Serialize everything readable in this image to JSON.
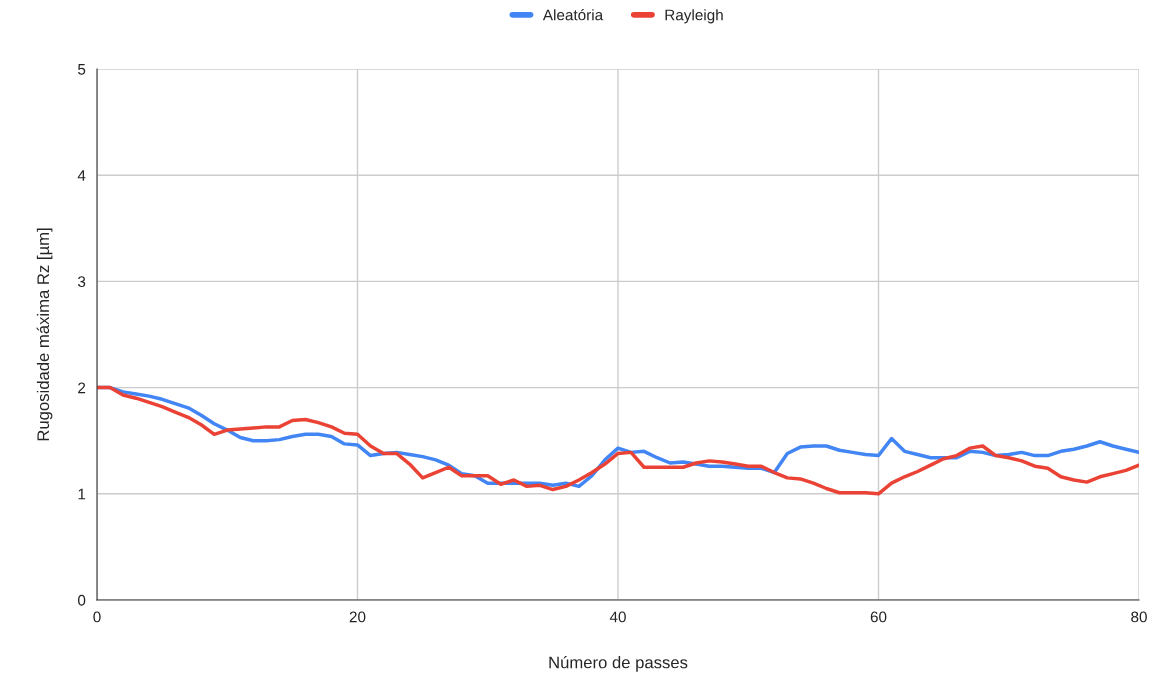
{
  "chart_data": {
    "type": "line",
    "xlabel": "Número de passes",
    "ylabel": "Rugosidade máxima Rz [µm]",
    "x": [
      0,
      1,
      2,
      3,
      4,
      5,
      6,
      7,
      8,
      9,
      10,
      11,
      12,
      13,
      14,
      15,
      16,
      17,
      18,
      19,
      20,
      21,
      22,
      23,
      24,
      25,
      26,
      27,
      28,
      29,
      30,
      31,
      32,
      33,
      34,
      35,
      36,
      37,
      38,
      39,
      40,
      41,
      42,
      43,
      44,
      45,
      46,
      47,
      48,
      49,
      50,
      51,
      52,
      53,
      54,
      55,
      56,
      57,
      58,
      59,
      60,
      61,
      62,
      63,
      64,
      65,
      66,
      67,
      68,
      69,
      70,
      71,
      72,
      73,
      74,
      75,
      76,
      77,
      78,
      79,
      80
    ],
    "series": [
      {
        "name": "Aleatória",
        "color": "#4285f4",
        "values": [
          2.0,
          2.0,
          1.96,
          1.94,
          1.92,
          1.89,
          1.85,
          1.81,
          1.74,
          1.66,
          1.6,
          1.53,
          1.5,
          1.5,
          1.51,
          1.54,
          1.56,
          1.56,
          1.54,
          1.47,
          1.46,
          1.36,
          1.38,
          1.39,
          1.37,
          1.35,
          1.32,
          1.27,
          1.19,
          1.17,
          1.1,
          1.1,
          1.1,
          1.1,
          1.1,
          1.08,
          1.1,
          1.07,
          1.17,
          1.32,
          1.43,
          1.39,
          1.4,
          1.34,
          1.29,
          1.3,
          1.28,
          1.26,
          1.26,
          1.25,
          1.24,
          1.24,
          1.2,
          1.38,
          1.44,
          1.45,
          1.45,
          1.41,
          1.39,
          1.37,
          1.36,
          1.52,
          1.4,
          1.37,
          1.34,
          1.34,
          1.34,
          1.4,
          1.39,
          1.36,
          1.37,
          1.39,
          1.36,
          1.36,
          1.4,
          1.42,
          1.45,
          1.49,
          1.45,
          1.42,
          1.39
        ]
      },
      {
        "name": "Rayleigh",
        "color": "#ea4335",
        "values": [
          2.0,
          2.0,
          1.93,
          1.9,
          1.86,
          1.82,
          1.77,
          1.72,
          1.65,
          1.56,
          1.6,
          1.61,
          1.62,
          1.63,
          1.63,
          1.69,
          1.7,
          1.67,
          1.63,
          1.57,
          1.56,
          1.45,
          1.38,
          1.38,
          1.28,
          1.15,
          1.2,
          1.25,
          1.17,
          1.17,
          1.17,
          1.09,
          1.13,
          1.07,
          1.08,
          1.04,
          1.07,
          1.13,
          1.2,
          1.28,
          1.38,
          1.39,
          1.25,
          1.25,
          1.25,
          1.25,
          1.29,
          1.31,
          1.3,
          1.28,
          1.26,
          1.26,
          1.2,
          1.15,
          1.14,
          1.1,
          1.05,
          1.01,
          1.01,
          1.01,
          1.0,
          1.1,
          1.16,
          1.21,
          1.27,
          1.33,
          1.36,
          1.43,
          1.45,
          1.36,
          1.34,
          1.31,
          1.26,
          1.24,
          1.16,
          1.13,
          1.11,
          1.16,
          1.19,
          1.22,
          1.27
        ]
      }
    ],
    "xlim": [
      0,
      80
    ],
    "xticks": [
      0,
      20,
      40,
      60,
      80
    ],
    "ylim": [
      0,
      5
    ],
    "yticks": [
      0,
      1,
      2,
      3,
      4,
      5
    ],
    "grid": true,
    "legend": "top",
    "line_style": "solid"
  }
}
